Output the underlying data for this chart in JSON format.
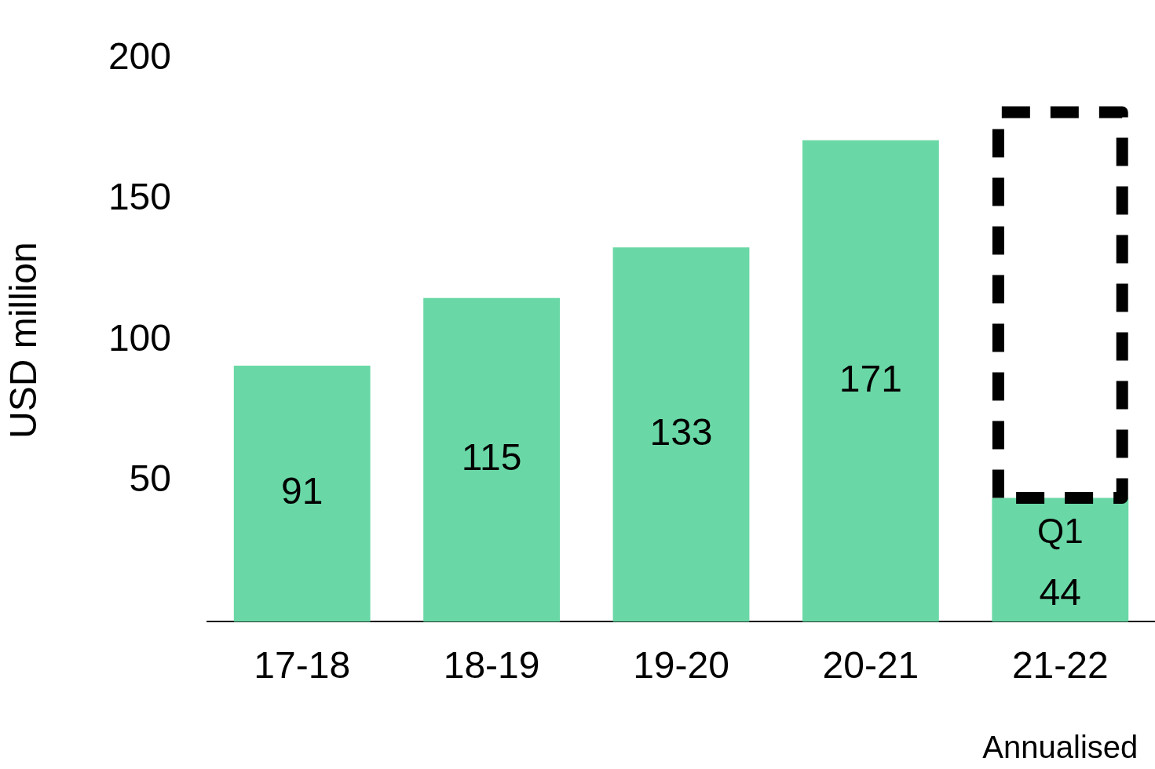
{
  "chart_data": {
    "type": "bar",
    "ylabel": "USD million",
    "categories": [
      "17-18",
      "18-19",
      "19-20",
      "20-21",
      "21-22"
    ],
    "stacked": true,
    "series": [
      {
        "color": "#6ad8a6",
        "values": [
          91,
          115,
          133,
          171,
          44
        ],
        "value_labels": [
          "91",
          "115",
          "133",
          "171",
          "44"
        ]
      },
      {
        "color": "#000000",
        "line_style": "dashed",
        "values": [
          null,
          null,
          null,
          null,
          137
        ]
      }
    ],
    "ylim": [
      0,
      200
    ],
    "yticks": [
      50,
      100,
      150,
      200
    ],
    "grid": false,
    "legend": false,
    "annotations": [
      "Q1",
      "Annualised"
    ]
  }
}
